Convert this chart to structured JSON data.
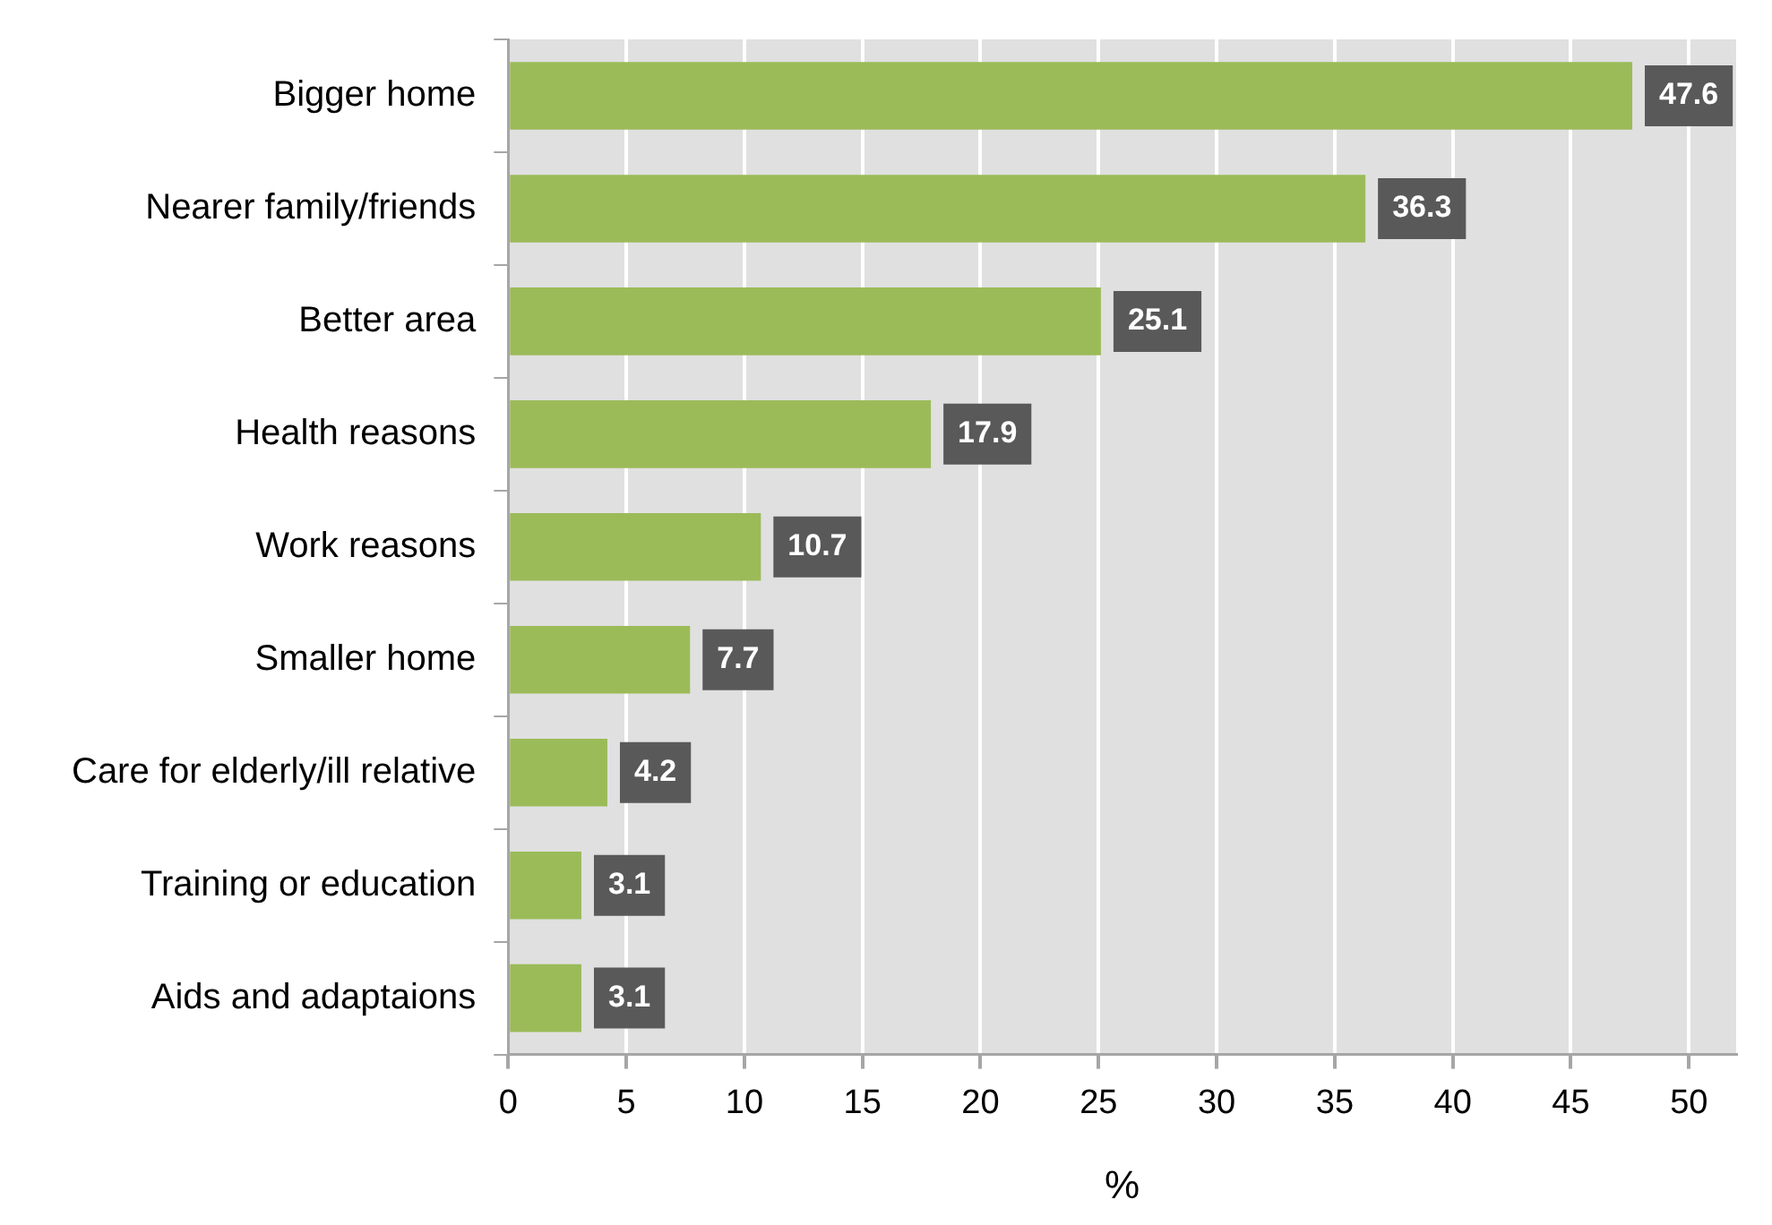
{
  "chart_data": {
    "type": "bar",
    "orientation": "horizontal",
    "xlabel": "%",
    "categories": [
      "Bigger home",
      "Nearer family/friends",
      "Better area",
      "Health reasons",
      "Work reasons",
      "Smaller home",
      "Care for elderly/ill relative",
      "Training or education",
      "Aids and adaptaions"
    ],
    "values": [
      47.6,
      36.3,
      25.1,
      17.9,
      10.7,
      7.7,
      4.2,
      3.1,
      3.1
    ],
    "color": "#9bbb59",
    "xlim": [
      0,
      52
    ],
    "xticks": [
      0,
      5,
      10,
      15,
      20,
      25,
      30,
      35,
      40,
      45,
      50
    ],
    "grid": "x",
    "legend": false,
    "data_labels": true
  }
}
